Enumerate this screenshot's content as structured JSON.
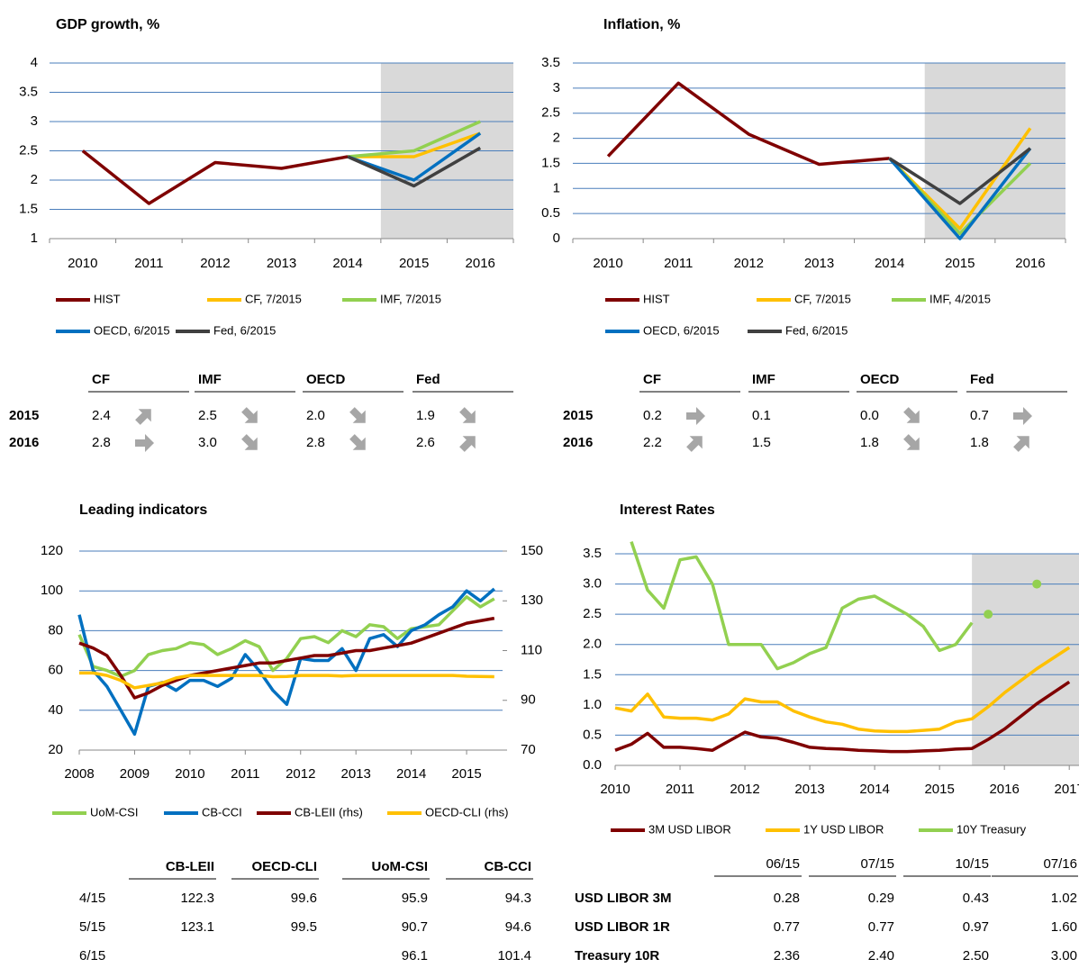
{
  "chart_data": [
    {
      "type": "line",
      "title": "GDP growth, %",
      "categories": [
        "2010",
        "2011",
        "2012",
        "2013",
        "2014",
        "2015",
        "2016"
      ],
      "ylim": [
        1,
        4
      ],
      "yticks": [
        1,
        1.5,
        2,
        2.5,
        3,
        3.5,
        4
      ],
      "grid": true,
      "grid_color": "#4a7ebb",
      "shade_from": "2015",
      "shade_color": "#d9d9d9",
      "series": [
        {
          "name": "HIST",
          "color": "#7f0000",
          "values": [
            2.5,
            1.6,
            2.3,
            2.2,
            2.4,
            null,
            null
          ]
        },
        {
          "name": "CF, 7/2015",
          "color": "#ffc000",
          "values": [
            null,
            null,
            null,
            null,
            2.4,
            2.4,
            2.8
          ]
        },
        {
          "name": "IMF, 7/2015",
          "color": "#92d050",
          "values": [
            null,
            null,
            null,
            null,
            2.4,
            2.5,
            3.0
          ]
        },
        {
          "name": "OECD, 6/2015",
          "color": "#0070c0",
          "values": [
            null,
            null,
            null,
            null,
            2.4,
            2.0,
            2.8
          ]
        },
        {
          "name": "Fed, 6/2015",
          "color": "#404040",
          "values": [
            null,
            null,
            null,
            null,
            2.4,
            1.9,
            2.55
          ]
        }
      ]
    },
    {
      "type": "line",
      "title": "Inflation, %",
      "categories": [
        "2010",
        "2011",
        "2012",
        "2013",
        "2014",
        "2015",
        "2016"
      ],
      "ylim": [
        0,
        3.5
      ],
      "yticks": [
        0,
        0.5,
        1,
        1.5,
        2,
        2.5,
        3,
        3.5
      ],
      "grid": true,
      "grid_color": "#4a7ebb",
      "shade_from": "2015",
      "shade_color": "#d9d9d9",
      "series": [
        {
          "name": "HIST",
          "color": "#7f0000",
          "values": [
            1.64,
            3.1,
            2.08,
            1.48,
            1.6,
            null,
            null
          ]
        },
        {
          "name": "CF, 7/2015",
          "color": "#ffc000",
          "values": [
            null,
            null,
            null,
            null,
            1.6,
            0.2,
            2.2
          ]
        },
        {
          "name": "IMF, 4/2015",
          "color": "#92d050",
          "values": [
            null,
            null,
            null,
            null,
            1.6,
            0.1,
            1.5
          ]
        },
        {
          "name": "OECD, 6/2015",
          "color": "#0070c0",
          "values": [
            null,
            null,
            null,
            null,
            1.6,
            0.0,
            1.8
          ]
        },
        {
          "name": "Fed, 6/2015",
          "color": "#404040",
          "values": [
            null,
            null,
            null,
            null,
            1.6,
            0.7,
            1.8
          ]
        }
      ]
    },
    {
      "type": "line",
      "title": "Leading indicators",
      "x": [
        2008,
        2008.25,
        2008.5,
        2008.75,
        2009,
        2009.25,
        2009.5,
        2009.75,
        2010,
        2010.25,
        2010.5,
        2010.75,
        2011,
        2011.25,
        2011.5,
        2011.75,
        2012,
        2012.25,
        2012.5,
        2012.75,
        2013,
        2013.25,
        2013.5,
        2013.75,
        2014,
        2014.25,
        2014.5,
        2014.75,
        2015,
        2015.25,
        2015.5
      ],
      "xlim": [
        2008,
        2015.65
      ],
      "xticks": [
        2008,
        2009,
        2010,
        2011,
        2012,
        2013,
        2014,
        2015
      ],
      "ylim": [
        20,
        120
      ],
      "yticks": [
        20,
        40,
        60,
        80,
        100,
        120
      ],
      "y2lim": [
        70,
        150
      ],
      "y2ticks": [
        70,
        90,
        110,
        130,
        150
      ],
      "grid": true,
      "grid_color": "#4a7ebb",
      "series": [
        {
          "name": "UoM-CSI",
          "color": "#92d050",
          "values": [
            78,
            62,
            60,
            57,
            60,
            68,
            70,
            71,
            74,
            73,
            68,
            71,
            75,
            72,
            60,
            66,
            76,
            77,
            74,
            80,
            77,
            83,
            82,
            76,
            81,
            82,
            83,
            90,
            97,
            92,
            96
          ]
        },
        {
          "name": "CB-CCI",
          "color": "#0070c0",
          "values": [
            88,
            60,
            52,
            40,
            28,
            52,
            54,
            50,
            55,
            55,
            52,
            56,
            68,
            60,
            50,
            43,
            66,
            65,
            65,
            71,
            60,
            76,
            78,
            72,
            80,
            83,
            88,
            92,
            100,
            95,
            101
          ]
        },
        {
          "name": "CB-LEII (rhs)",
          "color": "#7f0000",
          "axis": "y2",
          "values": [
            113,
            111,
            108,
            100,
            91,
            93,
            96,
            98,
            100,
            101,
            102,
            103,
            104,
            105,
            105,
            106,
            107,
            108,
            108,
            109,
            110,
            110,
            111,
            112,
            113,
            115,
            117,
            119,
            121,
            122,
            123
          ]
        },
        {
          "name": "OECD-CLI (rhs)",
          "color": "#ffc000",
          "axis": "y2",
          "values": [
            101,
            101,
            100,
            98,
            95,
            96,
            97,
            99,
            100,
            100,
            100,
            100,
            100,
            100,
            99.5,
            99.6,
            100,
            100,
            100,
            99.8,
            100,
            100,
            100,
            100,
            100,
            100,
            100,
            100,
            99.7,
            99.6,
            99.5
          ]
        }
      ]
    },
    {
      "type": "line",
      "title": "Interest Rates",
      "xlim": [
        2010,
        2017.15
      ],
      "xticks": [
        2010,
        2011,
        2012,
        2013,
        2014,
        2015,
        2016,
        2017
      ],
      "ylim": [
        0,
        3.5
      ],
      "yticks": [
        {
          "value": 0,
          "label": "0.0"
        },
        {
          "value": 0.5,
          "label": "0.5"
        },
        {
          "value": 1,
          "label": "1.0"
        },
        {
          "value": 1.5,
          "label": "1.5"
        },
        {
          "value": 2,
          "label": "2.0"
        },
        {
          "value": 2.5,
          "label": "2.5"
        },
        {
          "value": 3,
          "label": "3.0"
        },
        {
          "value": 3.5,
          "label": "3.5"
        }
      ],
      "grid": true,
      "grid_color": "#4a7ebb",
      "shade_from": 2015.5,
      "shade_color": "#d9d9d9",
      "series": [
        {
          "name": "3M USD LIBOR",
          "color": "#7f0000",
          "x": [
            2010,
            2010.25,
            2010.5,
            2010.75,
            2011,
            2011.25,
            2011.5,
            2011.75,
            2012,
            2012.25,
            2012.5,
            2012.75,
            2013,
            2013.25,
            2013.5,
            2013.75,
            2014,
            2014.25,
            2014.5,
            2014.75,
            2015,
            2015.25,
            2015.5,
            2015.75,
            2016,
            2016.5,
            2017
          ],
          "values": [
            0.25,
            0.35,
            0.53,
            0.3,
            0.3,
            0.28,
            0.25,
            0.4,
            0.55,
            0.47,
            0.45,
            0.38,
            0.3,
            0.28,
            0.27,
            0.25,
            0.24,
            0.23,
            0.23,
            0.24,
            0.25,
            0.27,
            0.28,
            0.43,
            0.6,
            1.02,
            1.38
          ]
        },
        {
          "name": "1Y USD LIBOR",
          "color": "#ffc000",
          "x": [
            2010,
            2010.25,
            2010.5,
            2010.75,
            2011,
            2011.25,
            2011.5,
            2011.75,
            2012,
            2012.25,
            2012.5,
            2012.75,
            2013,
            2013.25,
            2013.5,
            2013.75,
            2014,
            2014.25,
            2014.5,
            2014.75,
            2015,
            2015.25,
            2015.5,
            2015.75,
            2016,
            2016.5,
            2017
          ],
          "values": [
            0.95,
            0.9,
            1.18,
            0.8,
            0.78,
            0.78,
            0.75,
            0.85,
            1.1,
            1.05,
            1.05,
            0.9,
            0.8,
            0.72,
            0.68,
            0.6,
            0.57,
            0.56,
            0.56,
            0.58,
            0.6,
            0.72,
            0.77,
            0.97,
            1.2,
            1.6,
            1.95
          ]
        },
        {
          "name": "10Y Treasury",
          "color": "#92d050",
          "x": [
            2010.25,
            2010.5,
            2010.75,
            2011,
            2011.25,
            2011.5,
            2011.75,
            2012,
            2012.25,
            2012.5,
            2012.75,
            2013,
            2013.25,
            2013.5,
            2013.75,
            2014,
            2014.25,
            2014.5,
            2014.75,
            2015,
            2015.25,
            2015.5
          ],
          "values": [
            3.7,
            2.9,
            2.6,
            3.4,
            3.45,
            3.0,
            2.0,
            2.0,
            2.0,
            1.6,
            1.7,
            1.85,
            1.95,
            2.6,
            2.75,
            2.8,
            2.65,
            2.5,
            2.3,
            1.9,
            2.0,
            2.36
          ],
          "points": {
            "x": [
              2015.75,
              2016.5
            ],
            "values": [
              2.5,
              3.0
            ]
          }
        }
      ]
    }
  ],
  "tables": [
    {
      "columns": [
        "CF",
        "IMF",
        "OECD",
        "Fed"
      ],
      "rows": [
        {
          "label": "2015",
          "cells": [
            {
              "value": "2.4",
              "arrow": "up"
            },
            {
              "value": "2.5",
              "arrow": "down"
            },
            {
              "value": "2.0",
              "arrow": "down"
            },
            {
              "value": "1.9",
              "arrow": "down"
            }
          ]
        },
        {
          "label": "2016",
          "cells": [
            {
              "value": "2.8",
              "arrow": "right"
            },
            {
              "value": "3.0",
              "arrow": "down"
            },
            {
              "value": "2.8",
              "arrow": "down"
            },
            {
              "value": "2.6",
              "arrow": "up"
            }
          ]
        }
      ]
    },
    {
      "columns": [
        "CF",
        "IMF",
        "OECD",
        "Fed"
      ],
      "rows": [
        {
          "label": "2015",
          "cells": [
            {
              "value": "0.2",
              "arrow": "right"
            },
            {
              "value": "0.1"
            },
            {
              "value": "0.0",
              "arrow": "down"
            },
            {
              "value": "0.7",
              "arrow": "right"
            }
          ]
        },
        {
          "label": "2016",
          "cells": [
            {
              "value": "2.2",
              "arrow": "up"
            },
            {
              "value": "1.5"
            },
            {
              "value": "1.8",
              "arrow": "down"
            },
            {
              "value": "1.8",
              "arrow": "up"
            }
          ]
        }
      ]
    },
    {
      "columns": [
        "CB-LEII",
        "OECD-CLI",
        "UoM-CSI",
        "CB-CCI"
      ],
      "rows": [
        {
          "label": "4/15",
          "cells": [
            "122.3",
            "99.6",
            "95.9",
            "94.3"
          ]
        },
        {
          "label": "5/15",
          "cells": [
            "123.1",
            "99.5",
            "90.7",
            "94.6"
          ]
        },
        {
          "label": "6/15",
          "cells": [
            null,
            null,
            "96.1",
            "101.4"
          ]
        }
      ]
    },
    {
      "columns": [
        "06/15",
        "07/15",
        "10/15",
        "07/16"
      ],
      "rows": [
        {
          "label": "USD LIBOR 3M",
          "cells": [
            "0.28",
            "0.29",
            "0.43",
            "1.02"
          ]
        },
        {
          "label": "USD LIBOR 1R",
          "cells": [
            "0.77",
            "0.77",
            "0.97",
            "1.60"
          ]
        },
        {
          "label": "Treasury 10R",
          "cells": [
            "2.36",
            "2.40",
            "2.50",
            "3.00"
          ]
        }
      ]
    }
  ]
}
